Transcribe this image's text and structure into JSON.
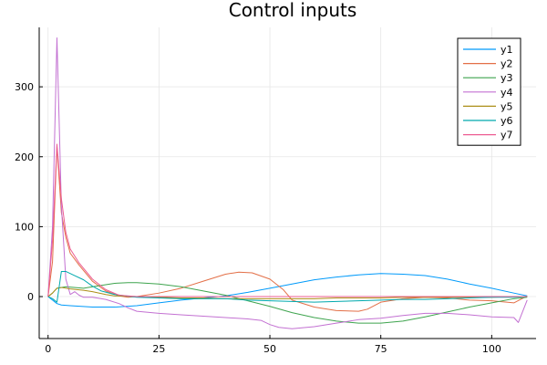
{
  "chart_data": {
    "type": "line",
    "title": "Control inputs",
    "xlabel": "",
    "ylabel": "",
    "xlim": [
      -2,
      110
    ],
    "ylim": [
      -60,
      385
    ],
    "xticks": [
      0,
      25,
      50,
      75,
      100
    ],
    "yticks": [
      0,
      100,
      200,
      300
    ],
    "grid": true,
    "legend_position": "top-right",
    "series": [
      {
        "name": "y1",
        "color": "#009AFA",
        "points": [
          [
            0,
            0
          ],
          [
            1,
            -5
          ],
          [
            2,
            -10
          ],
          [
            3,
            -12
          ],
          [
            5,
            -13
          ],
          [
            10,
            -15
          ],
          [
            15,
            -15
          ],
          [
            20,
            -13
          ],
          [
            25,
            -9
          ],
          [
            30,
            -5
          ],
          [
            35,
            -2
          ],
          [
            40,
            1
          ],
          [
            45,
            6
          ],
          [
            50,
            12
          ],
          [
            55,
            18
          ],
          [
            60,
            24
          ],
          [
            65,
            28
          ],
          [
            70,
            31
          ],
          [
            75,
            33
          ],
          [
            80,
            32
          ],
          [
            85,
            30
          ],
          [
            90,
            25
          ],
          [
            95,
            18
          ],
          [
            100,
            12
          ],
          [
            105,
            5
          ],
          [
            108,
            1
          ]
        ]
      },
      {
        "name": "y2",
        "color": "#E36F47",
        "points": [
          [
            0,
            0
          ],
          [
            1,
            50
          ],
          [
            2,
            215
          ],
          [
            3,
            120
          ],
          [
            4,
            85
          ],
          [
            5,
            62
          ],
          [
            7,
            45
          ],
          [
            10,
            22
          ],
          [
            13,
            8
          ],
          [
            16,
            1
          ],
          [
            18,
            -1
          ],
          [
            20,
            0
          ],
          [
            25,
            5
          ],
          [
            30,
            12
          ],
          [
            35,
            22
          ],
          [
            40,
            32
          ],
          [
            43,
            35
          ],
          [
            46,
            34
          ],
          [
            50,
            25
          ],
          [
            53,
            10
          ],
          [
            55,
            -5
          ],
          [
            60,
            -15
          ],
          [
            65,
            -20
          ],
          [
            70,
            -21
          ],
          [
            72,
            -18
          ],
          [
            75,
            -8
          ],
          [
            80,
            -3
          ],
          [
            85,
            -1
          ],
          [
            90,
            -2
          ],
          [
            95,
            -5
          ],
          [
            100,
            -6
          ],
          [
            105,
            -9
          ],
          [
            108,
            1
          ]
        ]
      },
      {
        "name": "y3",
        "color": "#3EA44E",
        "points": [
          [
            0,
            0
          ],
          [
            1,
            5
          ],
          [
            2,
            12
          ],
          [
            4,
            14
          ],
          [
            8,
            12
          ],
          [
            10,
            14
          ],
          [
            15,
            19
          ],
          [
            18,
            20
          ],
          [
            20,
            20
          ],
          [
            25,
            18
          ],
          [
            30,
            14
          ],
          [
            35,
            8
          ],
          [
            40,
            2
          ],
          [
            45,
            -6
          ],
          [
            50,
            -14
          ],
          [
            55,
            -23
          ],
          [
            60,
            -30
          ],
          [
            65,
            -35
          ],
          [
            70,
            -38
          ],
          [
            75,
            -38
          ],
          [
            80,
            -35
          ],
          [
            85,
            -29
          ],
          [
            90,
            -22
          ],
          [
            95,
            -15
          ],
          [
            100,
            -9
          ],
          [
            105,
            -3
          ],
          [
            108,
            -1
          ]
        ]
      },
      {
        "name": "y4",
        "color": "#C371D2",
        "points": [
          [
            0,
            0
          ],
          [
            1,
            100
          ],
          [
            2,
            370
          ],
          [
            3,
            130
          ],
          [
            4,
            25
          ],
          [
            5,
            3
          ],
          [
            6,
            7
          ],
          [
            7,
            2
          ],
          [
            8,
            -1
          ],
          [
            10,
            -1
          ],
          [
            13,
            -4
          ],
          [
            16,
            -10
          ],
          [
            18,
            -16
          ],
          [
            20,
            -21
          ],
          [
            25,
            -24
          ],
          [
            30,
            -26
          ],
          [
            35,
            -28
          ],
          [
            40,
            -30
          ],
          [
            45,
            -32
          ],
          [
            48,
            -34
          ],
          [
            50,
            -40
          ],
          [
            52,
            -44
          ],
          [
            55,
            -46
          ],
          [
            60,
            -43
          ],
          [
            65,
            -38
          ],
          [
            70,
            -33
          ],
          [
            75,
            -31
          ],
          [
            80,
            -27
          ],
          [
            85,
            -24
          ],
          [
            90,
            -24
          ],
          [
            95,
            -26
          ],
          [
            100,
            -29
          ],
          [
            105,
            -30
          ],
          [
            106,
            -37
          ],
          [
            108,
            -5
          ]
        ]
      },
      {
        "name": "y5",
        "color": "#AC8E18",
        "points": [
          [
            0,
            0
          ],
          [
            1,
            5
          ],
          [
            2,
            12
          ],
          [
            3,
            13
          ],
          [
            5,
            11
          ],
          [
            8,
            9
          ],
          [
            10,
            7
          ],
          [
            13,
            3
          ],
          [
            15,
            1
          ],
          [
            20,
            0
          ],
          [
            25,
            -1
          ],
          [
            30,
            -2
          ],
          [
            35,
            -2
          ],
          [
            40,
            -3
          ],
          [
            45,
            -3
          ],
          [
            50,
            -3
          ],
          [
            55,
            -3
          ],
          [
            60,
            -3
          ],
          [
            65,
            -2
          ],
          [
            70,
            -2
          ],
          [
            75,
            -2
          ],
          [
            80,
            -1
          ],
          [
            85,
            -1
          ],
          [
            90,
            -1
          ],
          [
            95,
            -1
          ],
          [
            100,
            -1
          ],
          [
            105,
            0
          ],
          [
            108,
            0
          ]
        ]
      },
      {
        "name": "y6",
        "color": "#00A9AD",
        "points": [
          [
            0,
            0
          ],
          [
            1,
            -3
          ],
          [
            2,
            -8
          ],
          [
            3,
            36
          ],
          [
            4,
            36
          ],
          [
            6,
            30
          ],
          [
            8,
            24
          ],
          [
            10,
            15
          ],
          [
            12,
            8
          ],
          [
            15,
            3
          ],
          [
            20,
            -1
          ],
          [
            25,
            -2
          ],
          [
            30,
            -3
          ],
          [
            35,
            -3
          ],
          [
            40,
            -3
          ],
          [
            45,
            -5
          ],
          [
            50,
            -6
          ],
          [
            55,
            -7
          ],
          [
            60,
            -8
          ],
          [
            65,
            -7
          ],
          [
            70,
            -6
          ],
          [
            75,
            -5
          ],
          [
            80,
            -4
          ],
          [
            85,
            -4
          ],
          [
            90,
            -3
          ],
          [
            95,
            -2
          ],
          [
            100,
            -1
          ],
          [
            105,
            -1
          ],
          [
            108,
            0
          ]
        ]
      },
      {
        "name": "y7",
        "color": "#ED5D92",
        "points": [
          [
            0,
            0
          ],
          [
            1,
            80
          ],
          [
            2,
            218
          ],
          [
            3,
            140
          ],
          [
            4,
            92
          ],
          [
            5,
            68
          ],
          [
            7,
            48
          ],
          [
            10,
            25
          ],
          [
            13,
            10
          ],
          [
            16,
            2
          ],
          [
            20,
            0
          ],
          [
            25,
            0
          ],
          [
            30,
            0
          ],
          [
            35,
            0
          ],
          [
            40,
            0
          ],
          [
            45,
            0
          ],
          [
            50,
            0
          ],
          [
            55,
            0
          ],
          [
            60,
            0
          ],
          [
            65,
            0
          ],
          [
            70,
            0
          ],
          [
            75,
            0
          ],
          [
            80,
            0
          ],
          [
            85,
            0
          ],
          [
            90,
            0
          ],
          [
            95,
            0
          ],
          [
            100,
            0
          ],
          [
            105,
            0
          ],
          [
            108,
            0
          ]
        ]
      }
    ]
  }
}
